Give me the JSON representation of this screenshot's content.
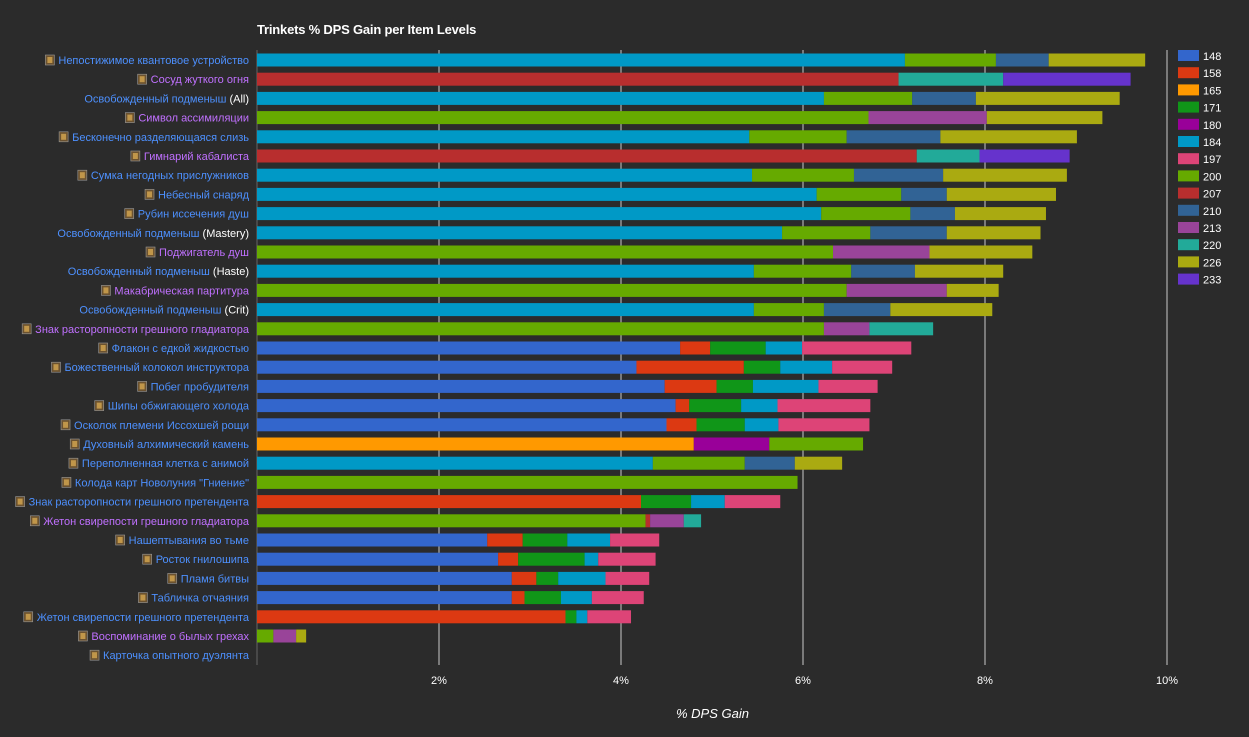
{
  "colors": {
    "148": "#3366cc",
    "158": "#dc3912",
    "165": "#ff9900",
    "171": "#109618",
    "180": "#990099",
    "184": "#0099c6",
    "197": "#dd4477",
    "200": "#66aa00",
    "207": "#b82e2e",
    "210": "#316395",
    "213": "#994499",
    "220": "#22aa99",
    "226": "#aaaa11",
    "233": "#6633cc",
    "label_blue": "#4d90fe",
    "label_purple": "#c070ff",
    "label_suffix": "#ffffff",
    "background": "#2b2b2b",
    "grid": "#c8c8c8"
  },
  "chart_data": {
    "type": "bar",
    "orientation": "horizontal",
    "stacked": true,
    "title": "Trinkets % DPS Gain per Item Levels",
    "xlabel": "% DPS Gain",
    "ylabel": "",
    "xlim": [
      0,
      10
    ],
    "xticks": [
      "2%",
      "4%",
      "6%",
      "8%",
      "10%"
    ],
    "grid": true,
    "legend_position": "right",
    "series_names": [
      "148",
      "158",
      "165",
      "171",
      "180",
      "184",
      "197",
      "200",
      "207",
      "210",
      "213",
      "220",
      "226",
      "233"
    ],
    "items": [
      {
        "label": "Непостижимое квантовое устройство",
        "suffix": "",
        "color": "blue",
        "icon": "trinket-icon",
        "segments": [
          [
            "184",
            7.12
          ],
          [
            "200",
            1.0
          ],
          [
            "210",
            0.58
          ],
          [
            "226",
            1.06
          ]
        ]
      },
      {
        "label": "Сосуд жуткого огня",
        "suffix": "",
        "color": "purple",
        "icon": "trinket-icon",
        "segments": [
          [
            "207",
            7.05
          ],
          [
            "220",
            1.15
          ],
          [
            "233",
            1.4
          ]
        ]
      },
      {
        "label": "Освобожденный подменыш",
        "suffix": "(All)",
        "color": "blue",
        "icon": "",
        "segments": [
          [
            "184",
            6.23
          ],
          [
            "200",
            0.97
          ],
          [
            "210",
            0.7
          ],
          [
            "226",
            1.58
          ]
        ]
      },
      {
        "label": "Символ ассимиляции",
        "suffix": "",
        "color": "purple",
        "icon": "trinket-icon",
        "segments": [
          [
            "200",
            6.72
          ],
          [
            "213",
            1.3
          ],
          [
            "226",
            1.27
          ]
        ]
      },
      {
        "label": "Бесконечно разделяющаяся слизь",
        "suffix": "",
        "color": "blue",
        "icon": "trinket-icon",
        "segments": [
          [
            "184",
            5.41
          ],
          [
            "200",
            1.07
          ],
          [
            "210",
            1.03
          ],
          [
            "226",
            1.5
          ]
        ]
      },
      {
        "label": "Гимнарий кабалиста",
        "suffix": "",
        "color": "purple",
        "icon": "trinket-icon",
        "segments": [
          [
            "207",
            7.25
          ],
          [
            "220",
            0.69
          ],
          [
            "233",
            0.99
          ]
        ]
      },
      {
        "label": "Сумка негодных прислужников",
        "suffix": "",
        "color": "blue",
        "icon": "trinket-icon",
        "segments": [
          [
            "184",
            5.44
          ],
          [
            "200",
            1.12
          ],
          [
            "210",
            0.98
          ],
          [
            "226",
            1.36
          ]
        ]
      },
      {
        "label": "Небесный снаряд",
        "suffix": "",
        "color": "blue",
        "icon": "trinket-icon",
        "segments": [
          [
            "184",
            6.15
          ],
          [
            "200",
            0.93
          ],
          [
            "210",
            0.5
          ],
          [
            "226",
            1.2
          ]
        ]
      },
      {
        "label": "Рубин иссечения душ",
        "suffix": "",
        "color": "blue",
        "icon": "trinket-icon",
        "segments": [
          [
            "184",
            6.2
          ],
          [
            "200",
            0.98
          ],
          [
            "210",
            0.49
          ],
          [
            "226",
            1.0
          ]
        ]
      },
      {
        "label": "Освобожденный подменыш",
        "suffix": "(Mastery)",
        "color": "blue",
        "icon": "",
        "segments": [
          [
            "184",
            5.77
          ],
          [
            "200",
            0.97
          ],
          [
            "210",
            0.84
          ],
          [
            "226",
            1.03
          ]
        ]
      },
      {
        "label": "Поджигатель душ",
        "suffix": "",
        "color": "purple",
        "icon": "trinket-icon",
        "segments": [
          [
            "200",
            6.33
          ],
          [
            "213",
            1.06
          ],
          [
            "226",
            1.13
          ]
        ]
      },
      {
        "label": "Освобожденный подменыш",
        "suffix": "(Haste)",
        "color": "blue",
        "icon": "",
        "segments": [
          [
            "184",
            5.46
          ],
          [
            "200",
            1.07
          ],
          [
            "210",
            0.7
          ],
          [
            "226",
            0.97
          ]
        ]
      },
      {
        "label": "Макабрическая партитура",
        "suffix": "",
        "color": "purple",
        "icon": "trinket-icon",
        "segments": [
          [
            "200",
            6.48
          ],
          [
            "213",
            1.1
          ],
          [
            "226",
            0.57
          ]
        ]
      },
      {
        "label": "Освобожденный подменыш",
        "suffix": "(Crit)",
        "color": "blue",
        "icon": "",
        "segments": [
          [
            "184",
            5.46
          ],
          [
            "200",
            0.77
          ],
          [
            "210",
            0.73
          ],
          [
            "226",
            1.12
          ]
        ]
      },
      {
        "label": "Знак расторопности грешного гладиатора",
        "suffix": "",
        "color": "purple",
        "icon": "trinket-icon",
        "segments": [
          [
            "200",
            6.23
          ],
          [
            "213",
            0.5
          ],
          [
            "220",
            0.7
          ]
        ]
      },
      {
        "label": "Флакон с едкой жидкостью",
        "suffix": "",
        "color": "blue",
        "icon": "trinket-icon",
        "segments": [
          [
            "148",
            4.65
          ],
          [
            "158",
            0.33
          ],
          [
            "171",
            0.61
          ],
          [
            "184",
            0.4
          ],
          [
            "197",
            1.2
          ]
        ]
      },
      {
        "label": "Божественный колокол инструктора",
        "suffix": "",
        "color": "blue",
        "icon": "trinket-icon",
        "segments": [
          [
            "148",
            4.17
          ],
          [
            "158",
            1.18
          ],
          [
            "171",
            0.4
          ],
          [
            "184",
            0.57
          ],
          [
            "197",
            0.66
          ]
        ]
      },
      {
        "label": "Побег пробудителя",
        "suffix": "",
        "color": "blue",
        "icon": "trinket-icon",
        "segments": [
          [
            "148",
            4.48
          ],
          [
            "158",
            0.57
          ],
          [
            "171",
            0.4
          ],
          [
            "184",
            0.72
          ],
          [
            "197",
            0.65
          ]
        ]
      },
      {
        "label": "Шипы обжигающего холода",
        "suffix": "",
        "color": "blue",
        "icon": "trinket-icon",
        "segments": [
          [
            "148",
            4.6
          ],
          [
            "158",
            0.15
          ],
          [
            "171",
            0.57
          ],
          [
            "184",
            0.4
          ],
          [
            "197",
            1.02
          ]
        ]
      },
      {
        "label": "Осколок племени Иссохшей рощи",
        "suffix": "",
        "color": "blue",
        "icon": "trinket-icon",
        "segments": [
          [
            "148",
            4.5
          ],
          [
            "158",
            0.33
          ],
          [
            "171",
            0.53
          ],
          [
            "184",
            0.37
          ],
          [
            "197",
            1.0
          ]
        ]
      },
      {
        "label": "Духовный алхимический камень",
        "suffix": "",
        "color": "blue",
        "icon": "trinket-icon",
        "segments": [
          [
            "165",
            4.8
          ],
          [
            "180",
            0.83
          ],
          [
            "200",
            1.03
          ]
        ]
      },
      {
        "label": "Переполненная клетка с анимой",
        "suffix": "",
        "color": "blue",
        "icon": "trinket-icon",
        "segments": [
          [
            "184",
            4.35
          ],
          [
            "200",
            1.01
          ],
          [
            "210",
            0.55
          ],
          [
            "226",
            0.52
          ]
        ]
      },
      {
        "label": "Колода карт Новолуния \"Гниение\"",
        "suffix": "",
        "color": "blue",
        "icon": "trinket-icon",
        "segments": [
          [
            "200",
            5.94
          ]
        ]
      },
      {
        "label": "Знак расторопности грешного претендента",
        "suffix": "",
        "color": "blue",
        "icon": "trinket-icon",
        "segments": [
          [
            "158",
            4.22
          ],
          [
            "171",
            0.55
          ],
          [
            "184",
            0.37
          ],
          [
            "197",
            0.61
          ]
        ]
      },
      {
        "label": "Жетон свирепости грешного гладиатора",
        "suffix": "",
        "color": "purple",
        "icon": "trinket-icon",
        "segments": [
          [
            "200",
            4.27
          ],
          [
            "207",
            0.05
          ],
          [
            "213",
            0.37
          ],
          [
            "220",
            0.19
          ]
        ]
      },
      {
        "label": "Нашептывания во тьме",
        "suffix": "",
        "color": "blue",
        "icon": "trinket-icon",
        "segments": [
          [
            "148",
            2.53
          ],
          [
            "158",
            0.39
          ],
          [
            "171",
            0.49
          ],
          [
            "184",
            0.47
          ],
          [
            "197",
            0.54
          ]
        ]
      },
      {
        "label": "Росток гнилошипа",
        "suffix": "",
        "color": "blue",
        "icon": "trinket-icon",
        "segments": [
          [
            "148",
            2.65
          ],
          [
            "158",
            0.22
          ],
          [
            "171",
            0.73
          ],
          [
            "184",
            0.15
          ],
          [
            "197",
            0.63
          ]
        ]
      },
      {
        "label": "Пламя битвы",
        "suffix": "",
        "color": "blue",
        "icon": "trinket-icon",
        "segments": [
          [
            "148",
            2.8
          ],
          [
            "158",
            0.27
          ],
          [
            "171",
            0.24
          ],
          [
            "184",
            0.52
          ],
          [
            "197",
            0.48
          ]
        ]
      },
      {
        "label": "Табличка отчаяния",
        "suffix": "",
        "color": "blue",
        "icon": "trinket-icon",
        "segments": [
          [
            "148",
            2.8
          ],
          [
            "158",
            0.14
          ],
          [
            "171",
            0.4
          ],
          [
            "184",
            0.34
          ],
          [
            "197",
            0.57
          ]
        ]
      },
      {
        "label": "Жетон свирепости грешного претендента",
        "suffix": "",
        "color": "blue",
        "icon": "trinket-icon",
        "segments": [
          [
            "158",
            3.39
          ],
          [
            "171",
            0.12
          ],
          [
            "184",
            0.12
          ],
          [
            "197",
            0.48
          ]
        ]
      },
      {
        "label": "Воспоминание о былых грехах",
        "suffix": "",
        "color": "purple",
        "icon": "trinket-icon",
        "segments": [
          [
            "200",
            0.18
          ],
          [
            "213",
            0.25
          ],
          [
            "226",
            0.11
          ]
        ]
      },
      {
        "label": "Карточка опытного дуэлянта",
        "suffix": "",
        "color": "blue",
        "icon": "trinket-icon",
        "segments": []
      }
    ]
  }
}
